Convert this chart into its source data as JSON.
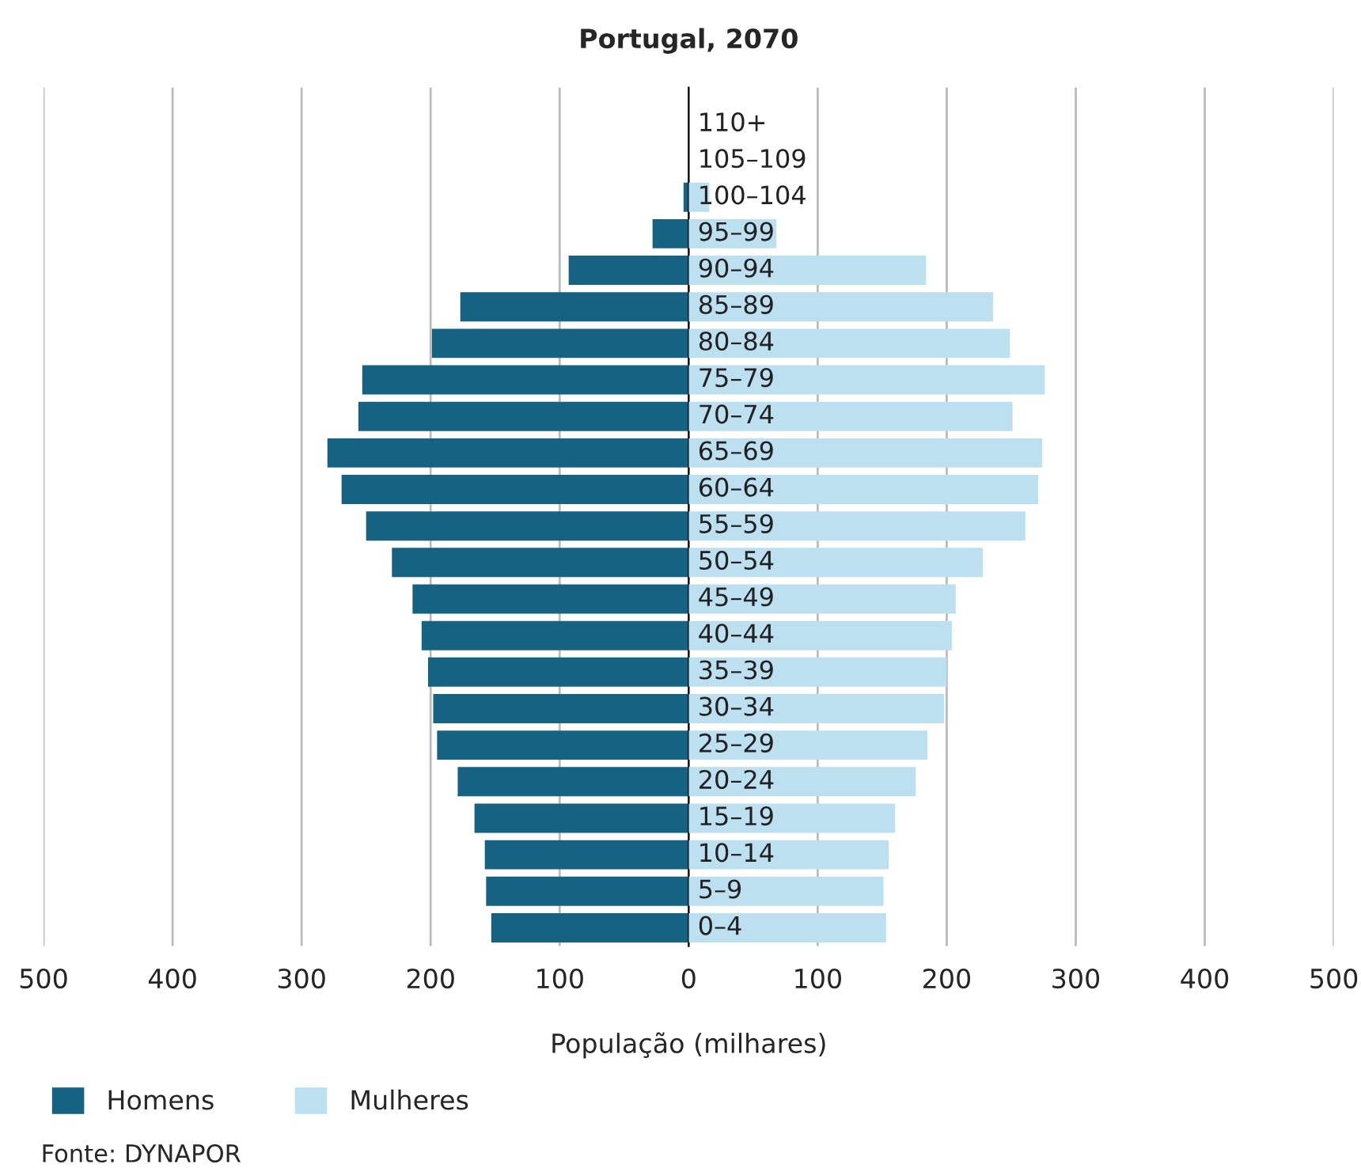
{
  "chart_data": [
    {
      "type": "bar",
      "orientation": "horizontal",
      "title": "Portugal, 2070",
      "xlabel": "População (milhares)",
      "categories": [
        null,
        null,
        null,
        null,
        null,
        null,
        null,
        null,
        null,
        null,
        null,
        null,
        null,
        null,
        null,
        null,
        null,
        null,
        null,
        null,
        null,
        null,
        null
      ],
      "series": [
        {
          "name": "Homens",
          "color": "#156282",
          "values": [
            0,
            0,
            4,
            28,
            93,
            177,
            199,
            253,
            256,
            280,
            269,
            250,
            230,
            214,
            207,
            202,
            198,
            195,
            179,
            166,
            158,
            157,
            153
          ]
        }
      ],
      "xlim": [
        500,
        0
      ],
      "xticks": [
        500,
        400,
        300,
        200,
        100
      ],
      "tick_labels": "x",
      "grid": "x",
      "legend": "bottom left"
    },
    {
      "type": "bar",
      "orientation": "horizontal",
      "categories": [
        "110+",
        "105–109",
        "100–104",
        "95–99",
        "90–94",
        "85–89",
        "80–84",
        "75–79",
        "70–74",
        "65–69",
        "60–64",
        "55–59",
        "50–54",
        "45–49",
        "40–44",
        "35–39",
        "30–34",
        "25–29",
        "20–24",
        "15–19",
        "10–14",
        "5–9",
        "0–4"
      ],
      "series": [
        {
          "name": "Mulheres",
          "color": "#bde0f1",
          "values": [
            0,
            0,
            16,
            68,
            184,
            236,
            249,
            276,
            251,
            274,
            271,
            261,
            228,
            207,
            204,
            200,
            198,
            185,
            176,
            160,
            155,
            151,
            153
          ]
        }
      ],
      "xlim": [
        0,
        500
      ],
      "xticks": [
        0,
        100,
        200,
        300,
        400,
        500
      ],
      "grid": "x",
      "annotations": [
        "Fonte: DYNAPOR"
      ]
    }
  ]
}
